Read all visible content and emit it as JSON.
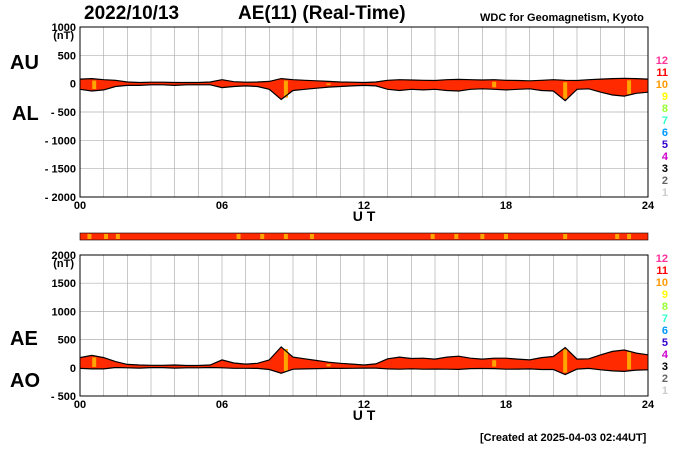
{
  "header": {
    "date": "2022/10/13",
    "title": "AE(11) (Real-Time)",
    "credit": "WDC for Geomagnetism, Kyoto"
  },
  "footer": {
    "created": "[Created at 2025-04-03 02:44UT]"
  },
  "side_labels": {
    "au": "AU",
    "al": "AL",
    "ae": "AE",
    "ao": "AO"
  },
  "station_legend": {
    "labels": [
      "12",
      "11",
      "10",
      "9",
      "8",
      "7",
      "6",
      "5",
      "4",
      "3",
      "2",
      "1"
    ],
    "colors": [
      "#ff3399",
      "#ff0000",
      "#ff9900",
      "#ffff00",
      "#99ff33",
      "#33ffcc",
      "#0099ff",
      "#3300cc",
      "#cc00cc",
      "#000000",
      "#666666",
      "#cccccc"
    ]
  },
  "colors": {
    "fill": "#ff2a00",
    "outline": "#000000",
    "highlight": "#ffa500",
    "grid": "#b0b0b0"
  },
  "chart_data": [
    {
      "type": "area",
      "title": "AU / AL",
      "xlabel": "U T",
      "ylabel": "(nT)",
      "xlim": [
        0,
        24
      ],
      "ylim": [
        -2000,
        1000
      ],
      "x_ticks": [
        "00",
        "06",
        "12",
        "18",
        "24"
      ],
      "y_ticks": [
        "1000",
        "500",
        "0",
        "- 500",
        "- 1000",
        "- 1500",
        "- 2000"
      ],
      "x": [
        0,
        0.5,
        1,
        1.5,
        2,
        2.5,
        3,
        3.5,
        4,
        4.5,
        5,
        5.5,
        6,
        6.5,
        7,
        7.5,
        8,
        8.5,
        9,
        9.5,
        10,
        10.5,
        11,
        11.5,
        12,
        12.5,
        13,
        13.5,
        14,
        14.5,
        15,
        15.5,
        16,
        16.5,
        17,
        17.5,
        18,
        18.5,
        19,
        19.5,
        20,
        20.5,
        21,
        21.5,
        22,
        22.5,
        23,
        23.5,
        24
      ],
      "series": [
        {
          "name": "AU",
          "values": [
            80,
            90,
            70,
            60,
            30,
            20,
            25,
            25,
            20,
            20,
            20,
            30,
            70,
            35,
            25,
            30,
            40,
            90,
            70,
            60,
            50,
            40,
            30,
            25,
            20,
            30,
            60,
            70,
            65,
            60,
            55,
            70,
            75,
            70,
            65,
            70,
            60,
            55,
            50,
            60,
            70,
            60,
            55,
            70,
            80,
            90,
            95,
            90,
            80
          ]
        },
        {
          "name": "AL",
          "values": [
            -100,
            -130,
            -110,
            -50,
            -30,
            -30,
            -20,
            -20,
            -30,
            -20,
            -20,
            -20,
            -70,
            -50,
            -40,
            -50,
            -100,
            -280,
            -120,
            -100,
            -80,
            -60,
            -50,
            -40,
            -30,
            -40,
            -100,
            -120,
            -100,
            -110,
            -100,
            -120,
            -130,
            -100,
            -90,
            -100,
            -110,
            -100,
            -90,
            -120,
            -130,
            -300,
            -100,
            -90,
            -150,
            -200,
            -220,
            -170,
            -150
          ]
        }
      ]
    },
    {
      "type": "area",
      "title": "AE / AO",
      "xlabel": "U T",
      "ylabel": "(nT)",
      "xlim": [
        0,
        24
      ],
      "ylim": [
        -500,
        2000
      ],
      "x_ticks": [
        "00",
        "06",
        "12",
        "18",
        "24"
      ],
      "y_ticks": [
        "2000",
        "1500",
        "1000",
        "500",
        "0",
        "- 500"
      ],
      "x": [
        0,
        0.5,
        1,
        1.5,
        2,
        2.5,
        3,
        3.5,
        4,
        4.5,
        5,
        5.5,
        6,
        6.5,
        7,
        7.5,
        8,
        8.5,
        9,
        9.5,
        10,
        10.5,
        11,
        11.5,
        12,
        12.5,
        13,
        13.5,
        14,
        14.5,
        15,
        15.5,
        16,
        16.5,
        17,
        17.5,
        18,
        18.5,
        19,
        19.5,
        20,
        20.5,
        21,
        21.5,
        22,
        22.5,
        23,
        23.5,
        24
      ],
      "series": [
        {
          "name": "AE",
          "values": [
            180,
            220,
            180,
            110,
            60,
            50,
            45,
            45,
            50,
            40,
            40,
            50,
            140,
            85,
            65,
            80,
            140,
            370,
            190,
            160,
            130,
            100,
            80,
            65,
            50,
            70,
            160,
            190,
            165,
            170,
            155,
            190,
            205,
            170,
            155,
            170,
            170,
            155,
            140,
            180,
            200,
            360,
            155,
            160,
            230,
            290,
            315,
            260,
            230
          ]
        },
        {
          "name": "AO",
          "values": [
            -10,
            -20,
            -20,
            5,
            0,
            -5,
            3,
            3,
            -5,
            0,
            0,
            5,
            0,
            -8,
            -8,
            -10,
            -30,
            -95,
            -25,
            -20,
            -15,
            -10,
            -10,
            -8,
            -5,
            -5,
            -20,
            -25,
            -18,
            -25,
            -23,
            -25,
            -28,
            -15,
            -13,
            -15,
            -25,
            -23,
            -20,
            -30,
            -30,
            -120,
            -23,
            -10,
            -35,
            -55,
            -63,
            -40,
            -35
          ]
        }
      ]
    }
  ]
}
